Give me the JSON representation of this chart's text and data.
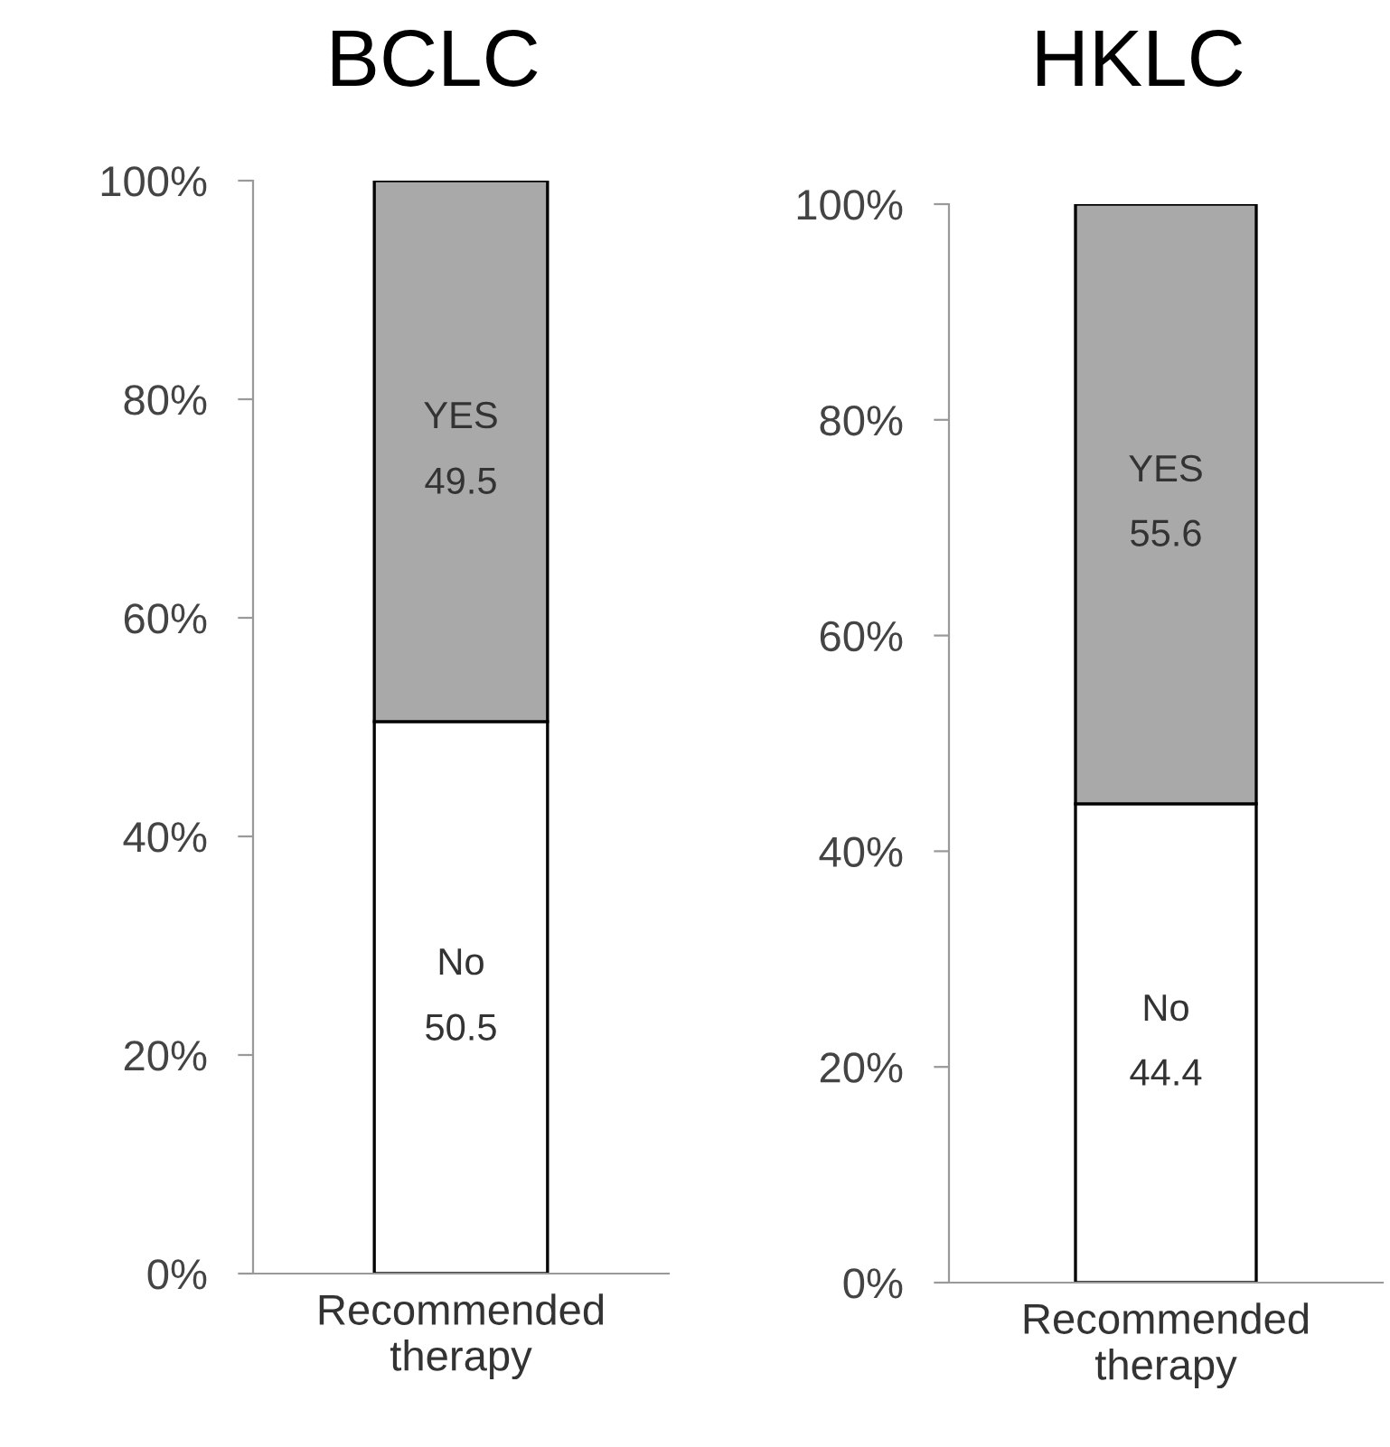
{
  "chart_data": [
    {
      "type": "bar",
      "title": "BCLC",
      "stacked": true,
      "categories": [
        "Recommended therapy"
      ],
      "ylim": [
        0,
        100
      ],
      "yticks": [
        {
          "value": 0,
          "label": "0%"
        },
        {
          "value": 20,
          "label": "20%"
        },
        {
          "value": 40,
          "label": "40%"
        },
        {
          "value": 60,
          "label": "60%"
        },
        {
          "value": 80,
          "label": "80%"
        },
        {
          "value": 100,
          "label": "100%"
        }
      ],
      "data_labels": true,
      "series": [
        {
          "name": "No",
          "color": "#ffffff",
          "values": [
            50.5
          ]
        },
        {
          "name": "YES",
          "color": "#a9a9a9",
          "values": [
            49.5
          ]
        }
      ]
    },
    {
      "type": "bar",
      "title": "HKLC",
      "stacked": true,
      "categories": [
        "Recommended therapy"
      ],
      "ylim": [
        0,
        100
      ],
      "yticks": [
        {
          "value": 0,
          "label": "0%"
        },
        {
          "value": 20,
          "label": "20%"
        },
        {
          "value": 40,
          "label": "40%"
        },
        {
          "value": 60,
          "label": "60%"
        },
        {
          "value": 80,
          "label": "80%"
        },
        {
          "value": 100,
          "label": "100%"
        }
      ],
      "data_labels": true,
      "series": [
        {
          "name": "No",
          "color": "#ffffff",
          "values": [
            44.4
          ]
        },
        {
          "name": "YES",
          "color": "#a9a9a9",
          "values": [
            55.6
          ]
        }
      ]
    }
  ]
}
